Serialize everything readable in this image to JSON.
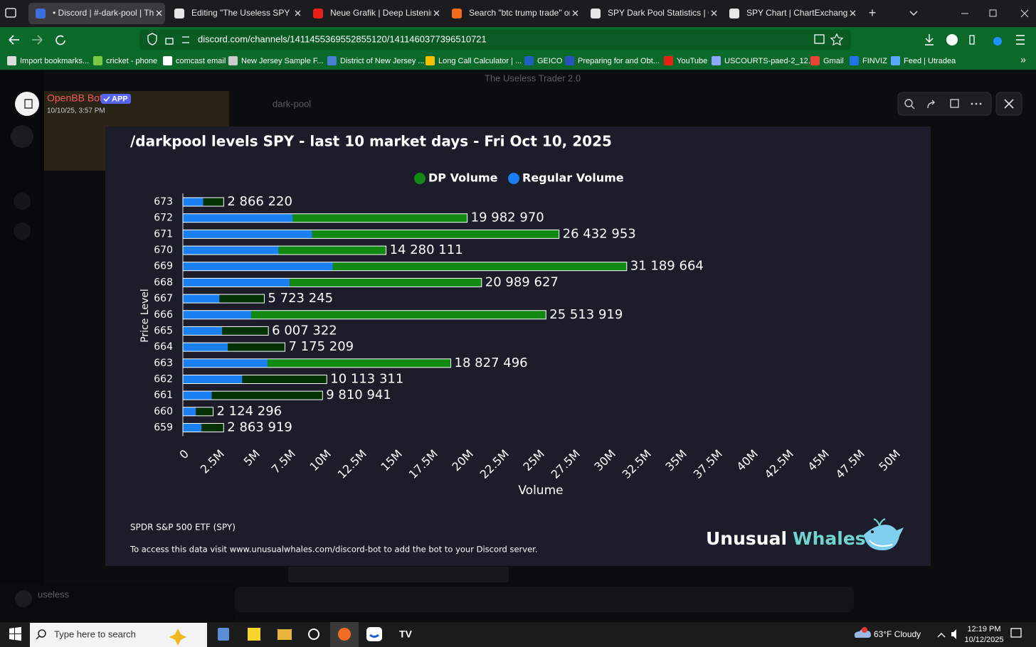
{
  "browser": {
    "tabs": [
      "• Discord | #-dark-pool | The",
      "Editing \"The Useless SPY report",
      "Neue Grafik | Deep Listenin",
      "Search \"btc trump trade\" on Su",
      "SPY Dark Pool Statistics | ChartE",
      "SPY Chart | ChartExchange"
    ],
    "url": "discord.com/channels/1411455369552855120/1411460377396510721",
    "bookmarks": [
      "Import bookmarks...",
      "cricket - phone",
      "comcast email",
      "New Jersey Sample F...",
      "District of New Jersey ...",
      "Long Call Calculator | ...",
      "GEICO",
      "Preparing for and Obt...",
      "YouTube",
      "USCOURTS-paed-2_12...",
      "Gmail",
      "FINVIZ",
      "Feed | Utradea"
    ]
  },
  "discord": {
    "server": "The Useless Trader 2.0",
    "channel": "dark-pool",
    "user": "useless"
  },
  "viewer": {
    "author": "OpenBB Bot",
    "badge": "APP",
    "timestamp": "10/10/25, 3:57 PM"
  },
  "chart_data": {
    "type": "stacked-bar-horizontal",
    "title": "/darkpool levels SPY - last 10 market days - Fri Oct 10, 2025",
    "categories": [
      "673",
      "672",
      "671",
      "670",
      "669",
      "668",
      "667",
      "666",
      "665",
      "664",
      "663",
      "662",
      "661",
      "660",
      "659"
    ],
    "series": [
      {
        "name": "DP Volume",
        "color": "#118a11",
        "colors": [
          "#023202",
          "#118a11",
          "#118a11",
          "#118a11",
          "#118a11",
          "#118a11",
          "#023202",
          "#118a11",
          "#023202",
          "#023202",
          "#118a11",
          "#023202",
          "#023202",
          "#023202",
          "#023202"
        ],
        "values": [
          1436220,
          12262970,
          17342953,
          7550111,
          20649664,
          13479627,
          3153245,
          20713919,
          3247322,
          4015209,
          12867496,
          5943311,
          7780941,
          1214296,
          1553919
        ]
      },
      {
        "name": "Regular Volume",
        "color": "#1a7ff0",
        "values": [
          1430000,
          7720000,
          9090000,
          6730000,
          10540000,
          7510000,
          2570000,
          4800000,
          2760000,
          3160000,
          5960000,
          4170000,
          2030000,
          910000,
          1310000
        ]
      }
    ],
    "totals": {
      "values": [
        2866220,
        19982970,
        26432953,
        14280111,
        31189664,
        20989627,
        5723245,
        25513919,
        6007322,
        7175209,
        18827496,
        10113311,
        9810941,
        2124296,
        2863919
      ],
      "value_labels": [
        "2 866 220",
        "19 982 970",
        "26 432 953",
        "14 280 111",
        "31 189 664",
        "20 989 627",
        "5 723 245",
        "25 513 919",
        "6 007 322",
        "7 175 209",
        "18 827 496",
        "10 113 311",
        "9 810 941",
        "2 124 296",
        "2 863 919"
      ]
    },
    "xlabel": "Volume",
    "ylabel": "Price Level",
    "xlim": [
      0,
      50000000
    ],
    "xticks": [
      0,
      {
        "value": 2500000,
        "label": "2.5M"
      },
      {
        "value": 5000000,
        "label": "5M"
      },
      {
        "value": 7500000,
        "label": "7.5M"
      },
      {
        "value": 10000000,
        "label": "10M"
      },
      {
        "value": 12500000,
        "label": "12.5M"
      },
      {
        "value": 15000000,
        "label": "15M"
      },
      {
        "value": 17500000,
        "label": "17.5M"
      },
      {
        "value": 20000000,
        "label": "20M"
      },
      {
        "value": 22500000,
        "label": "22.5M"
      },
      {
        "value": 25000000,
        "label": "25M"
      },
      {
        "value": 27500000,
        "label": "27.5M"
      },
      {
        "value": 30000000,
        "label": "30M"
      },
      {
        "value": 32500000,
        "label": "32.5M"
      },
      {
        "value": 35000000,
        "label": "35M"
      },
      {
        "value": 37500000,
        "label": "37.5M"
      },
      {
        "value": 40000000,
        "label": "40M"
      },
      {
        "value": 42500000,
        "label": "42.5M"
      },
      {
        "value": 45000000,
        "label": "45M"
      },
      {
        "value": 47500000,
        "label": "47.5M"
      },
      {
        "value": 50000000,
        "label": "50M"
      }
    ],
    "legend": "top",
    "footer": [
      "SPDR S&P 500 ETF (SPY)",
      "To access this data visit www.unusualwhales.com/discord-bot to add the bot to your Discord server."
    ],
    "logo": [
      "Unusual",
      "Whales"
    ]
  },
  "taskbar": {
    "search": "Type here to search",
    "weather": "63°F Cloudy",
    "time": "12:19 PM",
    "date": "10/12/2025"
  }
}
